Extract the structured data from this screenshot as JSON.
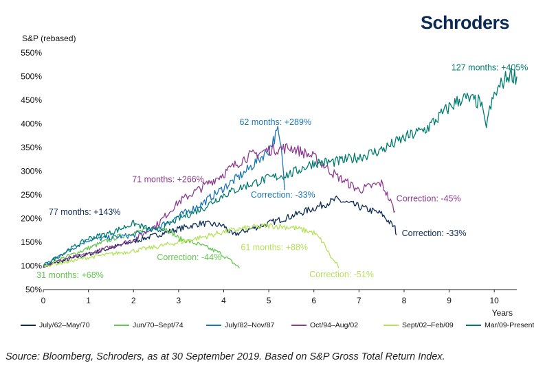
{
  "brand": "Schroders",
  "source": "Source: Bloomberg, Schroders, as at 30 September 2019. Based on S&P Gross Total Return Index.",
  "chart_data": {
    "type": "line",
    "title": "",
    "ylabel": "S&P (rebased)",
    "xlabel": "Years",
    "xlim": [
      0,
      10.5
    ],
    "ylim": [
      50,
      550
    ],
    "xticks": [
      0,
      1,
      2,
      3,
      4,
      5,
      6,
      7,
      8,
      9,
      10
    ],
    "yticks": [
      50,
      100,
      150,
      200,
      250,
      300,
      350,
      400,
      450,
      500,
      550
    ],
    "ytick_labels": [
      "50%",
      "100%",
      "150%",
      "200%",
      "250%",
      "300%",
      "350%",
      "400%",
      "450%",
      "500%",
      "550%"
    ],
    "grid": false,
    "legend_position": "bottom",
    "series": [
      {
        "name": "July/62–May/70",
        "color": "#0b2b55",
        "points": [
          [
            0,
            100
          ],
          [
            0.5,
            112
          ],
          [
            1,
            125
          ],
          [
            1.5,
            138
          ],
          [
            2,
            152
          ],
          [
            2.5,
            165
          ],
          [
            3,
            178
          ],
          [
            3.5,
            190
          ],
          [
            4,
            185
          ],
          [
            4.2,
            165
          ],
          [
            4.5,
            175
          ],
          [
            5,
            190
          ],
          [
            5.5,
            205
          ],
          [
            6,
            222
          ],
          [
            6.5,
            240
          ],
          [
            7,
            225
          ],
          [
            7.5,
            210
          ],
          [
            7.8,
            180
          ],
          [
            7.83,
            165
          ]
        ]
      },
      {
        "name": "Jun/70–Sept/74",
        "color": "#64c74f",
        "points": [
          [
            0,
            100
          ],
          [
            0.4,
            115
          ],
          [
            0.8,
            130
          ],
          [
            1.2,
            145
          ],
          [
            1.6,
            160
          ],
          [
            2,
            170
          ],
          [
            2.4,
            178
          ],
          [
            2.6,
            183
          ],
          [
            2.8,
            175
          ],
          [
            3,
            158
          ],
          [
            3.3,
            150
          ],
          [
            3.6,
            140
          ],
          [
            3.9,
            128
          ],
          [
            4.1,
            115
          ],
          [
            4.3,
            100
          ],
          [
            4.35,
            95
          ]
        ]
      },
      {
        "name": "July/82–Nov/87",
        "color": "#1b77b8",
        "points": [
          [
            0,
            100
          ],
          [
            0.5,
            130
          ],
          [
            1,
            155
          ],
          [
            1.5,
            160
          ],
          [
            2,
            165
          ],
          [
            2.5,
            180
          ],
          [
            3,
            205
          ],
          [
            3.5,
            230
          ],
          [
            4,
            265
          ],
          [
            4.5,
            300
          ],
          [
            5,
            345
          ],
          [
            5.2,
            385
          ],
          [
            5.3,
            330
          ],
          [
            5.35,
            260
          ]
        ]
      },
      {
        "name": "Oct/94–Aug/02",
        "color": "#8e3c8f",
        "points": [
          [
            0,
            100
          ],
          [
            0.5,
            115
          ],
          [
            1,
            125
          ],
          [
            1.5,
            140
          ],
          [
            2,
            155
          ],
          [
            2.5,
            185
          ],
          [
            3,
            235
          ],
          [
            3.5,
            265
          ],
          [
            4,
            295
          ],
          [
            4.5,
            330
          ],
          [
            5,
            345
          ],
          [
            5.5,
            350
          ],
          [
            6,
            330
          ],
          [
            6.5,
            290
          ],
          [
            7,
            260
          ],
          [
            7.5,
            275
          ],
          [
            7.8,
            215
          ]
        ]
      },
      {
        "name": "Sept/02–Feb/09",
        "color": "#b6e15a",
        "points": [
          [
            0,
            100
          ],
          [
            0.5,
            108
          ],
          [
            1,
            118
          ],
          [
            1.5,
            125
          ],
          [
            2,
            132
          ],
          [
            2.5,
            140
          ],
          [
            3,
            150
          ],
          [
            3.5,
            160
          ],
          [
            4,
            172
          ],
          [
            4.5,
            180
          ],
          [
            5,
            185
          ],
          [
            5.5,
            182
          ],
          [
            6,
            170
          ],
          [
            6.2,
            150
          ],
          [
            6.4,
            115
          ],
          [
            6.5,
            105
          ],
          [
            6.55,
            95
          ]
        ]
      },
      {
        "name": "Mar/09-Present",
        "color": "#007c6e",
        "points": [
          [
            0,
            100
          ],
          [
            0.5,
            130
          ],
          [
            1,
            158
          ],
          [
            1.5,
            170
          ],
          [
            2,
            190
          ],
          [
            2.5,
            172
          ],
          [
            3,
            200
          ],
          [
            3.5,
            220
          ],
          [
            4,
            250
          ],
          [
            4.5,
            270
          ],
          [
            5,
            285
          ],
          [
            5.5,
            295
          ],
          [
            6,
            318
          ],
          [
            6.5,
            320
          ],
          [
            7,
            330
          ],
          [
            7.5,
            345
          ],
          [
            8,
            370
          ],
          [
            8.5,
            390
          ],
          [
            9,
            435
          ],
          [
            9.3,
            455
          ],
          [
            9.7,
            445
          ],
          [
            9.8,
            395
          ],
          [
            10,
            460
          ],
          [
            10.2,
            490
          ],
          [
            10.35,
            505
          ],
          [
            10.5,
            500
          ]
        ]
      }
    ],
    "annotations": [
      {
        "text": "127 months: +405%",
        "color": "#007c6e",
        "x": 9.05,
        "y": 513
      },
      {
        "text": "62 months: +289%",
        "color": "#1b77b8",
        "x": 4.35,
        "y": 398
      },
      {
        "text": "71 months: +266%",
        "color": "#8e3c8f",
        "x": 1.97,
        "y": 277
      },
      {
        "text": "77 months: +143%",
        "color": "#0b2b55",
        "x": 0.12,
        "y": 208
      },
      {
        "text": "31 months: +68%",
        "color": "#64c74f",
        "x": -0.15,
        "y": 75
      },
      {
        "text": "Correction: -33%",
        "color": "#1b77b8",
        "x": 4.6,
        "y": 244
      },
      {
        "text": "Correction: -45%",
        "color": "#8e3c8f",
        "x": 7.83,
        "y": 236
      },
      {
        "text": "Correction: -33%",
        "color": "#0b2b55",
        "x": 7.95,
        "y": 163
      },
      {
        "text": "Correction: -44%",
        "color": "#64c74f",
        "x": 2.52,
        "y": 112
      },
      {
        "text": "61 months: +88%",
        "color": "#b6e15a",
        "x": 4.38,
        "y": 133
      },
      {
        "text": "Correction: -51%",
        "color": "#b6e15a",
        "x": 5.9,
        "y": 76
      }
    ]
  }
}
